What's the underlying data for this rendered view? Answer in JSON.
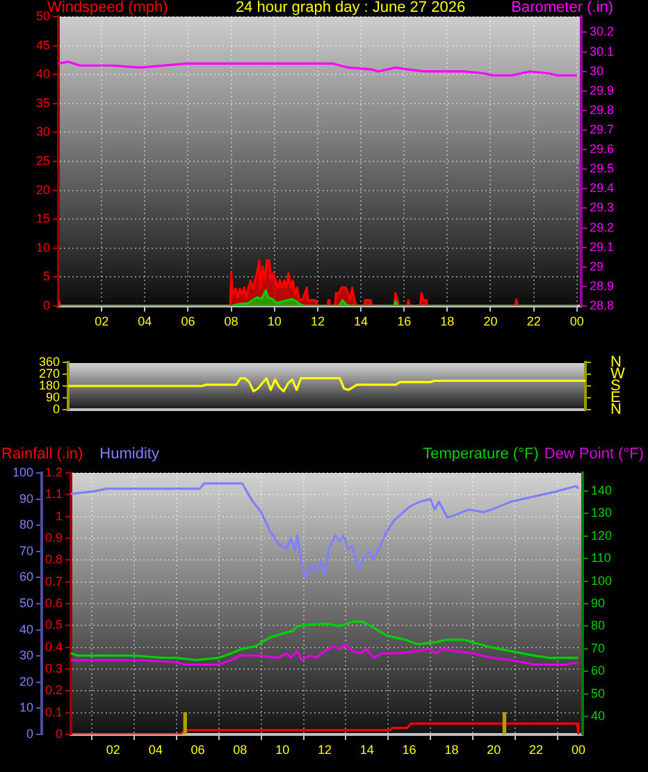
{
  "chart_data": [
    {
      "type": "line",
      "title": "24 hour graph day : June 27 2026",
      "xlim": [
        "2026-06-27T00:00",
        "2026-06-28T00:12"
      ],
      "xticks": [
        {
          "value": "2026-06-27T02:00",
          "label": "02"
        },
        {
          "value": "2026-06-27T04:00",
          "label": "04"
        },
        {
          "value": "2026-06-27T06:00",
          "label": "06"
        },
        {
          "value": "2026-06-27T08:00",
          "label": "08"
        },
        {
          "value": "2026-06-27T10:00",
          "label": "10"
        },
        {
          "value": "2026-06-27T12:00",
          "label": "12"
        },
        {
          "value": "2026-06-27T14:00",
          "label": "14"
        },
        {
          "value": "2026-06-27T16:00",
          "label": "16"
        },
        {
          "value": "2026-06-27T18:00",
          "label": "18"
        },
        {
          "value": "2026-06-27T20:00",
          "label": "20"
        },
        {
          "value": "2026-06-27T22:00",
          "label": "22"
        },
        {
          "value": "2026-06-28T00:00",
          "label": "00"
        }
      ],
      "ylim": [
        0,
        50
      ],
      "yticks": [
        0,
        5,
        10,
        15,
        20,
        25,
        30,
        35,
        40,
        45,
        50
      ],
      "y2lim": [
        28.8,
        30.28
      ],
      "y2ticks": [
        28.8,
        28.9,
        29,
        29.1,
        29.2,
        29.3,
        29.4,
        29.5,
        29.6,
        29.7,
        29.8,
        29.9,
        30,
        30.1,
        30.2
      ],
      "grid": true,
      "legend": "top",
      "series": [
        {
          "name": "Windspeed (mph)",
          "type": "area",
          "color": "#ff0000",
          "x": [
            "2026-06-27T00:00",
            "2026-06-27T00:06",
            "2026-06-27T07:57",
            "2026-06-27T08:00",
            "2026-06-27T08:03",
            "2026-06-27T08:12",
            "2026-06-27T08:18",
            "2026-06-27T08:24",
            "2026-06-27T08:30",
            "2026-06-27T08:36",
            "2026-06-27T08:42",
            "2026-06-27T08:48",
            "2026-06-27T08:54",
            "2026-06-27T09:00",
            "2026-06-27T09:06",
            "2026-06-27T09:12",
            "2026-06-27T09:18",
            "2026-06-27T09:21",
            "2026-06-27T09:27",
            "2026-06-27T09:33",
            "2026-06-27T09:39",
            "2026-06-27T09:45",
            "2026-06-27T09:51",
            "2026-06-27T09:57",
            "2026-06-27T10:03",
            "2026-06-27T10:09",
            "2026-06-27T10:15",
            "2026-06-27T10:21",
            "2026-06-27T10:27",
            "2026-06-27T10:33",
            "2026-06-27T10:39",
            "2026-06-27T10:45",
            "2026-06-27T10:51",
            "2026-06-27T10:57",
            "2026-06-27T11:03",
            "2026-06-27T11:09",
            "2026-06-27T11:18",
            "2026-06-27T11:30",
            "2026-06-27T11:33",
            "2026-06-27T11:54",
            "2026-06-27T12:00",
            "2026-06-27T12:27",
            "2026-06-27T12:30",
            "2026-06-27T12:33",
            "2026-06-27T12:48",
            "2026-06-27T12:51",
            "2026-06-27T13:00",
            "2026-06-27T13:06",
            "2026-06-27T13:18",
            "2026-06-27T13:24",
            "2026-06-27T13:30",
            "2026-06-27T13:36",
            "2026-06-27T13:42",
            "2026-06-27T13:48",
            "2026-06-27T14:09",
            "2026-06-27T14:12",
            "2026-06-27T14:27",
            "2026-06-27T14:30",
            "2026-06-27T15:33",
            "2026-06-27T15:36",
            "2026-06-27T15:42",
            "2026-06-27T15:45",
            "2026-06-27T16:09",
            "2026-06-27T16:12",
            "2026-06-27T16:15",
            "2026-06-27T16:45",
            "2026-06-27T16:48",
            "2026-06-27T16:54",
            "2026-06-27T17:00",
            "2026-06-27T17:03",
            "2026-06-27T21:09",
            "2026-06-27T21:12",
            "2026-06-27T21:15",
            "2026-06-28T00:00"
          ],
          "values": [
            1,
            0,
            0,
            5.7,
            2,
            3,
            1.5,
            3,
            2,
            3.2,
            1.5,
            3.2,
            4.4,
            3,
            4.5,
            5.7,
            7.9,
            3,
            6.8,
            4.5,
            7.9,
            7.9,
            4.5,
            5.7,
            4.4,
            3.2,
            4.5,
            3.2,
            4.4,
            3.2,
            5.7,
            3.2,
            4.4,
            2,
            3.2,
            1,
            1.1,
            3.2,
            1,
            1,
            0,
            0,
            1,
            0,
            0,
            2.2,
            2.2,
            3.2,
            3.2,
            2.2,
            1,
            3.2,
            1,
            0,
            0,
            1,
            1,
            0,
            0,
            2.2,
            1,
            0,
            0,
            1,
            0,
            0,
            2.2,
            1,
            1,
            0,
            0,
            1.1,
            0,
            0
          ]
        },
        {
          "type": "area",
          "color": "#00d000",
          "x": [
            "2026-06-27T00:00",
            "2026-06-27T08:00",
            "2026-06-27T08:18",
            "2026-06-27T08:48",
            "2026-06-27T09:00",
            "2026-06-27T09:12",
            "2026-06-27T09:24",
            "2026-06-27T09:36",
            "2026-06-27T09:42",
            "2026-06-27T09:54",
            "2026-06-27T10:06",
            "2026-06-27T10:24",
            "2026-06-27T10:36",
            "2026-06-27T10:48",
            "2026-06-27T11:00",
            "2026-06-27T11:12",
            "2026-06-27T11:24",
            "2026-06-27T13:00",
            "2026-06-27T13:09",
            "2026-06-27T13:18",
            "2026-06-27T13:30",
            "2026-06-27T15:33",
            "2026-06-27T15:36",
            "2026-06-27T15:42",
            "2026-06-28T00:00"
          ],
          "values": [
            0,
            0,
            0.3,
            0.5,
            1,
            1.5,
            1.2,
            2.7,
            1.5,
            1.2,
            0.5,
            0.8,
            1,
            1.2,
            0.8,
            0.3,
            0,
            0,
            1,
            0.3,
            0,
            0,
            0.8,
            0,
            0
          ]
        },
        {
          "name": "Barometer (.in)",
          "axis": "y2",
          "color": "#ff00ff",
          "x": [
            "2026-06-27T00:00",
            "2026-06-27T00:27",
            "2026-06-27T01:00",
            "2026-06-27T02:30",
            "2026-06-27T03:48",
            "2026-06-27T05:54",
            "2026-06-27T08:30",
            "2026-06-27T12:24",
            "2026-06-27T12:42",
            "2026-06-27T13:24",
            "2026-06-27T14:30",
            "2026-06-27T14:48",
            "2026-06-27T15:36",
            "2026-06-27T16:12",
            "2026-06-27T16:54",
            "2026-06-27T18:48",
            "2026-06-27T19:42",
            "2026-06-27T20:06",
            "2026-06-27T21:00",
            "2026-06-27T21:48",
            "2026-06-27T22:42",
            "2026-06-27T23:06",
            "2026-06-28T00:00"
          ],
          "values": [
            30.04,
            30.05,
            30.03,
            30.03,
            30.02,
            30.04,
            30.04,
            30.04,
            30.04,
            30.02,
            30.01,
            30.0,
            30.02,
            30.01,
            30.0,
            30.0,
            29.99,
            29.98,
            29.98,
            30.0,
            29.99,
            29.98,
            29.98
          ]
        }
      ]
    },
    {
      "type": "line",
      "categories": [
        null,
        null,
        null,
        null,
        null,
        null,
        null,
        null,
        null,
        null,
        null,
        null,
        null,
        null,
        null,
        null,
        null,
        null,
        null,
        null,
        null,
        null,
        null,
        null,
        null,
        null,
        null,
        null,
        null,
        null,
        null,
        null,
        null,
        null,
        null,
        null,
        null,
        null,
        null,
        null,
        null,
        null,
        null,
        null,
        null,
        null,
        null,
        null,
        null,
        null,
        null,
        null,
        null,
        null,
        null,
        null,
        null,
        null,
        null,
        null,
        null,
        null,
        null,
        null,
        null,
        null,
        null,
        null,
        null,
        null,
        null,
        null,
        null,
        null,
        null,
        null,
        null,
        null,
        null,
        null,
        null,
        null,
        null,
        null,
        null,
        null,
        null,
        null,
        null,
        null,
        null,
        null,
        null,
        null,
        null,
        null,
        null,
        null,
        null,
        null,
        null,
        null,
        null,
        null,
        null,
        null,
        null,
        null,
        null,
        null,
        null,
        null,
        null,
        null,
        null,
        null,
        null,
        null,
        null,
        null,
        null
      ],
      "ylim": [
        0,
        360
      ],
      "yticks": [
        0,
        90,
        180,
        270,
        360
      ],
      "y2_categories": [
        "N",
        "W",
        "S",
        "E",
        "N"
      ],
      "tick_labels": "y",
      "series": [
        {
          "color": "#ffff00",
          "values": [
            180,
            180,
            180,
            180,
            180,
            180,
            180,
            180,
            180,
            180,
            180,
            180,
            180,
            180,
            180,
            180,
            180,
            180,
            180,
            180,
            180,
            180,
            180,
            180,
            180,
            180,
            180,
            180,
            180,
            180,
            180,
            180,
            190,
            190,
            190,
            190,
            190,
            190,
            190,
            190,
            240,
            240,
            210,
            140,
            160,
            200,
            240,
            150,
            230,
            170,
            140,
            200,
            230,
            150,
            240,
            240,
            240,
            240,
            240,
            240,
            240,
            240,
            240,
            240,
            160,
            150,
            170,
            190,
            190,
            190,
            190,
            190,
            190,
            190,
            190,
            190,
            190,
            210,
            210,
            210,
            210,
            210,
            210,
            210,
            210,
            220,
            220,
            220,
            220,
            220,
            220,
            220,
            220,
            220,
            220,
            220,
            220,
            220,
            220,
            220,
            220,
            220,
            220,
            220,
            220,
            220,
            220,
            220,
            220,
            220,
            220,
            220,
            220,
            220,
            220,
            220,
            220,
            220,
            220,
            220,
            220
          ]
        }
      ]
    },
    {
      "type": "line",
      "xlim": [
        "2026-06-27T00:00",
        "2026-06-28T00:12"
      ],
      "xticks": [
        {
          "value": "2026-06-27T02:00",
          "label": "02"
        },
        {
          "value": "2026-06-27T04:00",
          "label": "04"
        },
        {
          "value": "2026-06-27T06:00",
          "label": "06"
        },
        {
          "value": "2026-06-27T08:00",
          "label": "08"
        },
        {
          "value": "2026-06-27T10:00",
          "label": "10"
        },
        {
          "value": "2026-06-27T12:00",
          "label": "12"
        },
        {
          "value": "2026-06-27T14:00",
          "label": "14"
        },
        {
          "value": "2026-06-27T16:00",
          "label": "16"
        },
        {
          "value": "2026-06-27T18:00",
          "label": "18"
        },
        {
          "value": "2026-06-27T20:00",
          "label": "20"
        },
        {
          "value": "2026-06-27T22:00",
          "label": "22"
        },
        {
          "value": "2026-06-28T00:00",
          "label": "00"
        }
      ],
      "ylim": [
        0,
        1.2
      ],
      "yticks": [
        0,
        0.1,
        0.2,
        0.3,
        0.4,
        0.5,
        0.6,
        0.7,
        0.8,
        0.9,
        1,
        1.1,
        1.2
      ],
      "y3lim": [
        0,
        100
      ],
      "y3ticks": [
        0,
        10,
        20,
        30,
        40,
        50,
        60,
        70,
        80,
        90,
        100
      ],
      "y2lim": [
        32,
        148
      ],
      "y2ticks": [
        40,
        50,
        60,
        70,
        80,
        90,
        100,
        110,
        120,
        130,
        140
      ],
      "grid": true,
      "legend": "top",
      "series": [
        {
          "name": "Rainfall (.in)",
          "color": "#ff0000",
          "x": [
            "2026-06-27T00:00",
            "2026-06-27T05:06",
            "2026-06-27T05:18",
            "2026-06-27T05:36",
            "2026-06-27T15:06",
            "2026-06-27T15:12",
            "2026-06-27T15:54",
            "2026-06-27T16:06",
            "2026-06-27T23:57",
            "2026-06-28T00:00"
          ],
          "values": [
            0,
            0,
            0.01,
            0.02,
            0.02,
            0.03,
            0.03,
            0.05,
            0.05,
            0
          ]
        },
        {
          "name": "Humidity",
          "axis": "y3",
          "color": "#8080ff",
          "x": [
            "2026-06-27T00:00",
            "2026-06-27T01:06",
            "2026-06-27T01:42",
            "2026-06-27T06:06",
            "2026-06-27T06:18",
            "2026-06-27T07:36",
            "2026-06-27T08:06",
            "2026-06-27T08:36",
            "2026-06-27T09:00",
            "2026-06-27T09:24",
            "2026-06-27T09:48",
            "2026-06-27T10:12",
            "2026-06-27T10:24",
            "2026-06-27T10:36",
            "2026-06-27T10:42",
            "2026-06-27T10:54",
            "2026-06-27T11:06",
            "2026-06-27T11:24",
            "2026-06-27T11:36",
            "2026-06-27T11:48",
            "2026-06-27T12:00",
            "2026-06-27T12:12",
            "2026-06-27T12:30",
            "2026-06-27T12:42",
            "2026-06-27T12:54",
            "2026-06-27T13:06",
            "2026-06-27T13:18",
            "2026-06-27T13:36",
            "2026-06-27T13:48",
            "2026-06-27T14:06",
            "2026-06-27T14:18",
            "2026-06-27T14:30",
            "2026-06-27T14:54",
            "2026-06-27T15:18",
            "2026-06-27T16:00",
            "2026-06-27T16:30",
            "2026-06-27T17:00",
            "2026-06-27T17:12",
            "2026-06-27T17:24",
            "2026-06-27T17:48",
            "2026-06-27T18:12",
            "2026-06-27T18:48",
            "2026-06-27T19:30",
            "2026-06-27T19:54",
            "2026-06-27T20:48",
            "2026-06-27T21:54",
            "2026-06-27T23:00",
            "2026-06-27T23:54",
            "2026-06-28T00:00"
          ],
          "values": [
            92,
            93,
            94,
            94,
            96,
            96,
            96,
            89,
            85,
            78,
            73,
            71,
            75,
            70,
            76,
            66,
            60,
            65,
            62,
            66,
            61,
            71,
            76,
            74,
            76,
            71,
            72,
            63,
            67,
            70,
            67,
            70,
            77,
            82,
            87,
            89,
            90,
            86,
            89,
            83,
            84,
            86,
            85,
            86,
            89,
            91,
            93,
            95,
            94
          ]
        },
        {
          "name": "Temperature (°F)",
          "axis": "y2",
          "color": "#00d000",
          "x": [
            "2026-06-27T00:00",
            "2026-06-27T00:18",
            "2026-06-27T03:00",
            "2026-06-27T04:24",
            "2026-06-27T05:00",
            "2026-06-27T05:54",
            "2026-06-27T07:00",
            "2026-06-27T07:36",
            "2026-06-27T08:06",
            "2026-06-27T08:42",
            "2026-06-27T09:24",
            "2026-06-27T10:06",
            "2026-06-27T10:30",
            "2026-06-27T10:42",
            "2026-06-27T11:36",
            "2026-06-27T12:12",
            "2026-06-27T12:42",
            "2026-06-27T13:18",
            "2026-06-27T13:48",
            "2026-06-27T14:12",
            "2026-06-27T14:54",
            "2026-06-27T15:48",
            "2026-06-27T16:24",
            "2026-06-27T17:18",
            "2026-06-27T17:42",
            "2026-06-27T18:36",
            "2026-06-27T19:42",
            "2026-06-27T20:48",
            "2026-06-27T21:54",
            "2026-06-27T22:36",
            "2026-06-28T00:00"
          ],
          "values": [
            68,
            67,
            67,
            66,
            66,
            65,
            66,
            68,
            70,
            71,
            75,
            77,
            78,
            80,
            81,
            81,
            80,
            82,
            82,
            80,
            76,
            74,
            72,
            73,
            74,
            74,
            71,
            69,
            67,
            66,
            66
          ]
        },
        {
          "name": "Dew Point (°F)",
          "axis": "y2",
          "color": "#e000e0",
          "x": [
            "2026-06-27T00:00",
            "2026-06-27T03:18",
            "2026-06-27T05:00",
            "2026-06-27T05:24",
            "2026-06-27T07:00",
            "2026-06-27T07:36",
            "2026-06-27T08:00",
            "2026-06-27T09:00",
            "2026-06-27T09:48",
            "2026-06-27T10:12",
            "2026-06-27T10:24",
            "2026-06-27T10:42",
            "2026-06-27T10:54",
            "2026-06-27T11:18",
            "2026-06-27T11:36",
            "2026-06-27T12:00",
            "2026-06-27T12:24",
            "2026-06-27T12:42",
            "2026-06-27T13:00",
            "2026-06-27T13:18",
            "2026-06-27T13:42",
            "2026-06-27T14:00",
            "2026-06-27T14:18",
            "2026-06-27T14:42",
            "2026-06-27T15:30",
            "2026-06-27T16:24",
            "2026-06-27T16:54",
            "2026-06-27T17:18",
            "2026-06-27T17:36",
            "2026-06-27T18:12",
            "2026-06-27T19:00",
            "2026-06-27T19:54",
            "2026-06-27T20:48",
            "2026-06-27T21:54",
            "2026-06-27T22:36",
            "2026-06-27T23:24",
            "2026-06-28T00:00"
          ],
          "values": [
            65,
            65,
            64,
            63,
            63,
            65,
            67,
            67,
            66,
            68,
            66,
            69,
            65,
            67,
            66,
            69,
            71,
            70,
            72,
            69,
            68,
            70,
            66,
            68,
            68,
            69,
            70,
            68,
            70,
            69,
            68,
            66,
            65,
            63,
            63,
            63,
            64
          ]
        },
        {
          "type": "bar",
          "color": "#b0a000",
          "x": [
            "2026-06-27T05:24",
            "2026-06-27T20:30"
          ],
          "values": [
            0.1,
            0.1
          ]
        }
      ]
    }
  ]
}
